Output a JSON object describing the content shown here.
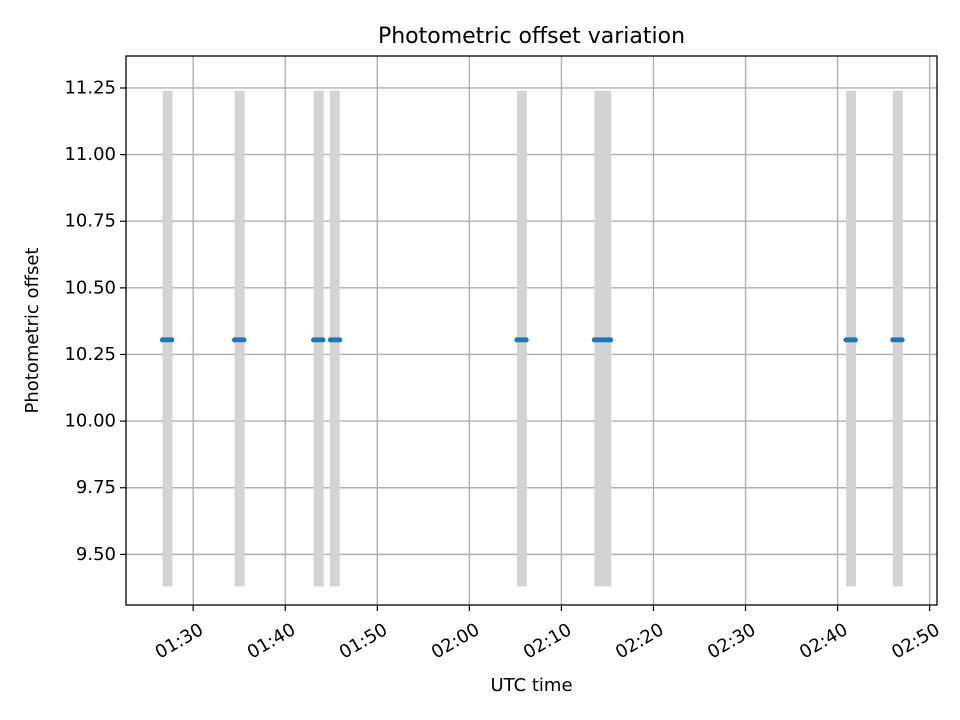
{
  "chart_data": {
    "type": "scatter",
    "title": "Photometric offset variation",
    "xlabel": "UTC time",
    "ylabel": "Photometric offset",
    "x_tick_labels": [
      "01:30",
      "01:40",
      "01:50",
      "02:00",
      "02:10",
      "02:20",
      "02:30",
      "02:40",
      "02:50"
    ],
    "x_tick_minutes": [
      90,
      100,
      110,
      120,
      130,
      140,
      150,
      160,
      170
    ],
    "y_tick_labels": [
      "9.50",
      "9.75",
      "10.00",
      "10.25",
      "10.50",
      "10.75",
      "11.00",
      "11.25"
    ],
    "y_tick_values": [
      9.5,
      9.75,
      10.0,
      10.25,
      10.5,
      10.75,
      11.0,
      11.25
    ],
    "xlim_minutes": [
      82.7,
      170.8
    ],
    "ylim": [
      9.31,
      11.37
    ],
    "grid": true,
    "legend": "none",
    "colors": {
      "points": "#1f77b4",
      "exposure_spans": "#d3d3d3",
      "grid": "#b0b0b0",
      "axes": "#000000"
    },
    "exposure_spans": [
      {
        "start": "01:26:40",
        "end": "01:27:45",
        "ymin": 9.38,
        "ymax": 11.24
      },
      {
        "start": "01:34:30",
        "end": "01:35:35",
        "ymin": 9.38,
        "ymax": 11.24
      },
      {
        "start": "01:43:05",
        "end": "01:44:10",
        "ymin": 9.38,
        "ymax": 11.24
      },
      {
        "start": "01:44:50",
        "end": "01:45:55",
        "ymin": 9.38,
        "ymax": 11.24
      },
      {
        "start": "02:05:10",
        "end": "02:06:15",
        "ymin": 9.38,
        "ymax": 11.24
      },
      {
        "start": "02:13:35",
        "end": "02:15:25",
        "ymin": 9.38,
        "ymax": 11.24
      },
      {
        "start": "02:40:55",
        "end": "02:42:00",
        "ymin": 9.38,
        "ymax": 11.24
      },
      {
        "start": "02:46:00",
        "end": "02:47:05",
        "ymin": 9.38,
        "ymax": 11.24
      }
    ],
    "series": [
      {
        "x": [
          "01:26:40",
          "01:26:55",
          "01:27:10",
          "01:27:25",
          "01:27:40",
          "01:34:30",
          "01:34:45",
          "01:35:00",
          "01:35:15",
          "01:35:30",
          "01:43:05",
          "01:43:20",
          "01:43:35",
          "01:43:50",
          "01:44:05",
          "01:44:55",
          "01:45:10",
          "01:45:25",
          "01:45:40",
          "01:45:55",
          "02:05:10",
          "02:05:25",
          "02:05:40",
          "02:05:55",
          "02:06:10",
          "02:13:35",
          "02:13:50",
          "02:14:05",
          "02:14:20",
          "02:14:35",
          "02:14:50",
          "02:15:05",
          "02:15:20",
          "02:40:55",
          "02:41:10",
          "02:41:25",
          "02:41:40",
          "02:41:55",
          "02:46:00",
          "02:46:15",
          "02:46:30",
          "02:46:45",
          "02:47:00"
        ],
        "y": 10.305
      }
    ]
  }
}
